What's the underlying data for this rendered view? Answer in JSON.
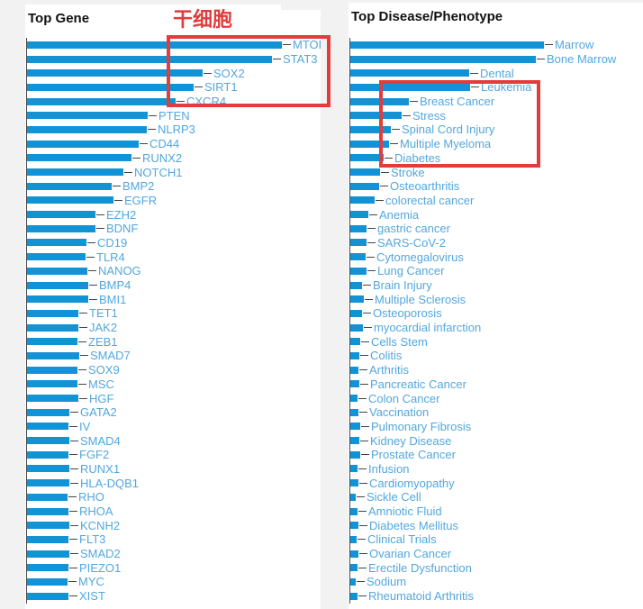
{
  "colors": {
    "bar_blue": "#1193d5",
    "label_blue": "#52a7de",
    "title_text": "#111111",
    "annotation_red": "#e23c3c",
    "page_background": "#f2f2f2",
    "panel_background": "#ffffff",
    "axis_line": "#4a4a4a"
  },
  "annotations": {
    "stem_cell_label": "干细胞",
    "left_box_highlighted": [
      "MTOR",
      "STAT3",
      "SOX2",
      "SIRT1",
      "CXCR4"
    ],
    "right_box_highlighted": [
      "Leukemia",
      "Breast Cancer",
      "Stress",
      "Spinal Cord Injury",
      "Multiple Myeloma",
      "Diabetes"
    ]
  },
  "chart_data": [
    {
      "type": "bar",
      "orientation": "horizontal",
      "title": "Top Gene",
      "legend": "none",
      "grid": false,
      "values_note": "no numeric axis shown in screenshot; values are estimated bar lengths in screen pixels",
      "categories": [
        "MTOR",
        "STAT3",
        "SOX2",
        "SIRT1",
        "CXCR4",
        "PTEN",
        "NLRP3",
        "CD44",
        "RUNX2",
        "NOTCH1",
        "BMP2",
        "EGFR",
        "EZH2",
        "BDNF",
        "CD19",
        "TLR4",
        "NANOG",
        "BMP4",
        "BMI1",
        "TET1",
        "JAK2",
        "ZEB1",
        "SMAD7",
        "SOX9",
        "MSC",
        "HGF",
        "GATA2",
        "IV",
        "SMAD4",
        "FGF2",
        "RUNX1",
        "HLA-DQB1",
        "RHO",
        "RHOA",
        "KCNH2",
        "FLT3",
        "SMAD2",
        "PIEZO1",
        "MYC",
        "XIST"
      ],
      "values": [
        283,
        272,
        195,
        185,
        165,
        134,
        133,
        124,
        116,
        107,
        94,
        96,
        76,
        76,
        66,
        65,
        67,
        68,
        68,
        57,
        57,
        56,
        58,
        56,
        56,
        57,
        47,
        46,
        47,
        46,
        47,
        47,
        45,
        46,
        47,
        46,
        47,
        46,
        45,
        46
      ]
    },
    {
      "type": "bar",
      "orientation": "horizontal",
      "title": "Top Disease/Phenotype",
      "legend": "none",
      "grid": false,
      "values_note": "no numeric axis shown in screenshot; values are estimated bar lengths in screen pixels",
      "categories": [
        "Marrow",
        "Bone Marrow",
        "Dental",
        "Leukemia",
        "Breast Cancer",
        "Stress",
        "Spinal Cord Injury",
        "Multiple Myeloma",
        "Diabetes",
        "Stroke",
        "Osteoarthritis",
        "colorectal cancer",
        "Anemia",
        "gastric cancer",
        "SARS-CoV-2",
        "Cytomegalovirus",
        "Lung Cancer",
        "Brain Injury",
        "Multiple Sclerosis",
        "Osteoporosis",
        "myocardial infarction",
        "Cells Stem",
        "Colitis",
        "Arthritis",
        "Pancreatic Cancer",
        "Colon Cancer",
        "Vaccination",
        "Pulmonary Fibrosis",
        "Kidney Disease",
        "Prostate Cancer",
        "Infusion",
        "Cardiomyopathy",
        "Sickle Cell",
        "Amniotic Fluid",
        "Diabetes Mellitus",
        "Clinical Trials",
        "Ovarian Cancer",
        "Erectile Dysfunction",
        "Sodium",
        "Rheumatoid Arthritis"
      ],
      "values": [
        215,
        206,
        132,
        133,
        65,
        57,
        45,
        43,
        37,
        33,
        32,
        27,
        20,
        18,
        18,
        17,
        18,
        13,
        15,
        13,
        14,
        11,
        10,
        9,
        10,
        8,
        9,
        11,
        10,
        11,
        8,
        9,
        6,
        8,
        9,
        7,
        9,
        8,
        6,
        8
      ]
    }
  ]
}
